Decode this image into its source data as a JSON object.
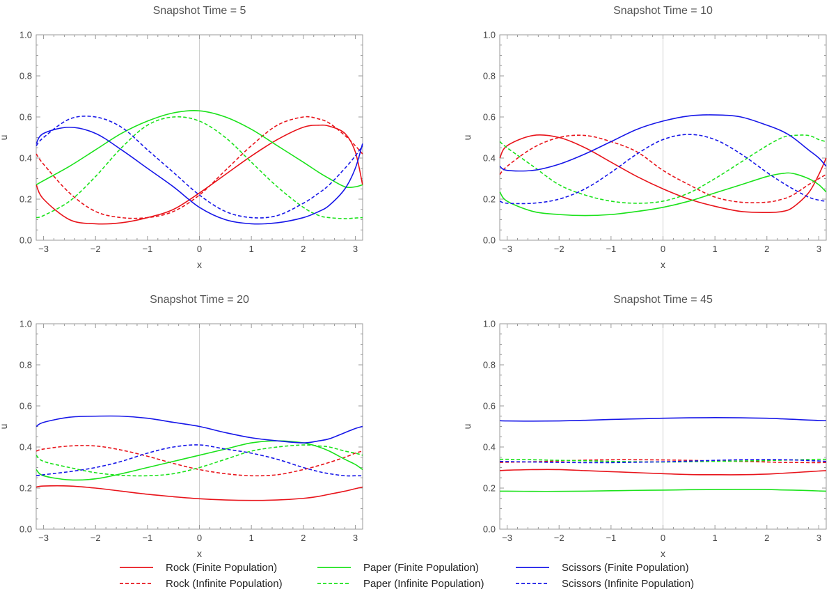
{
  "chart_data": [
    {
      "type": "line",
      "title": "Snapshot Time = 5",
      "xlabel": "x",
      "ylabel": "u",
      "xlim": [
        -3.14159,
        3.14159
      ],
      "ylim": [
        0,
        1
      ],
      "xticks": [
        -3,
        -2,
        -1,
        0,
        1,
        2,
        3
      ],
      "yticks": [
        0.0,
        0.2,
        0.4,
        0.6,
        0.8,
        1.0
      ],
      "x": [
        -3.14,
        -3.0,
        -2.5,
        -2.0,
        -1.5,
        -1.0,
        -0.5,
        0.0,
        0.5,
        1.0,
        1.5,
        2.0,
        2.3,
        2.5,
        2.8,
        3.0,
        3.14
      ],
      "series": [
        {
          "name": "Rock (Finite Population)",
          "color": "#e8141b",
          "dash": "solid",
          "values": [
            0.27,
            0.2,
            0.1,
            0.08,
            0.085,
            0.11,
            0.15,
            0.23,
            0.32,
            0.41,
            0.49,
            0.55,
            0.56,
            0.555,
            0.52,
            0.43,
            0.27
          ]
        },
        {
          "name": "Rock (Infinite Population)",
          "color": "#e8141b",
          "dash": "dashed",
          "values": [
            0.42,
            0.37,
            0.23,
            0.14,
            0.11,
            0.11,
            0.14,
            0.22,
            0.34,
            0.46,
            0.56,
            0.6,
            0.59,
            0.57,
            0.51,
            0.46,
            0.42
          ]
        },
        {
          "name": "Paper (Finite Population)",
          "color": "#1be21b",
          "dash": "solid",
          "values": [
            0.27,
            0.29,
            0.36,
            0.44,
            0.52,
            0.58,
            0.62,
            0.63,
            0.6,
            0.54,
            0.46,
            0.38,
            0.33,
            0.3,
            0.26,
            0.26,
            0.27
          ]
        },
        {
          "name": "Paper (Infinite Population)",
          "color": "#1be21b",
          "dash": "dashed",
          "values": [
            0.11,
            0.12,
            0.19,
            0.31,
            0.45,
            0.56,
            0.6,
            0.58,
            0.5,
            0.38,
            0.26,
            0.16,
            0.12,
            0.11,
            0.105,
            0.108,
            0.11
          ]
        },
        {
          "name": "Scissors (Finite Population)",
          "color": "#1717e8",
          "dash": "solid",
          "values": [
            0.47,
            0.52,
            0.55,
            0.52,
            0.44,
            0.35,
            0.26,
            0.16,
            0.1,
            0.08,
            0.085,
            0.11,
            0.14,
            0.17,
            0.25,
            0.35,
            0.47
          ]
        },
        {
          "name": "Scissors (Infinite Population)",
          "color": "#1717e8",
          "dash": "dashed",
          "values": [
            0.46,
            0.5,
            0.59,
            0.6,
            0.55,
            0.44,
            0.33,
            0.22,
            0.14,
            0.11,
            0.12,
            0.18,
            0.23,
            0.27,
            0.35,
            0.41,
            0.46
          ]
        }
      ]
    },
    {
      "type": "line",
      "title": "Snapshot Time = 10",
      "xlabel": "x",
      "ylabel": "u",
      "xlim": [
        -3.14159,
        3.14159
      ],
      "ylim": [
        0,
        1
      ],
      "xticks": [
        -3,
        -2,
        -1,
        0,
        1,
        2,
        3
      ],
      "yticks": [
        0.0,
        0.2,
        0.4,
        0.6,
        0.8,
        1.0
      ],
      "x": [
        -3.14,
        -3.0,
        -2.5,
        -2.0,
        -1.5,
        -1.0,
        -0.5,
        0.0,
        0.5,
        1.0,
        1.5,
        2.0,
        2.3,
        2.5,
        2.8,
        3.0,
        3.14
      ],
      "series": [
        {
          "name": "Rock (Finite Population)",
          "color": "#e8141b",
          "dash": "solid",
          "values": [
            0.4,
            0.46,
            0.51,
            0.5,
            0.45,
            0.38,
            0.31,
            0.25,
            0.2,
            0.165,
            0.14,
            0.135,
            0.14,
            0.16,
            0.23,
            0.32,
            0.4
          ]
        },
        {
          "name": "Rock (Infinite Population)",
          "color": "#e8141b",
          "dash": "dashed",
          "values": [
            0.32,
            0.36,
            0.45,
            0.5,
            0.51,
            0.48,
            0.43,
            0.34,
            0.27,
            0.21,
            0.185,
            0.185,
            0.2,
            0.22,
            0.27,
            0.3,
            0.32
          ]
        },
        {
          "name": "Paper (Finite Population)",
          "color": "#1be21b",
          "dash": "solid",
          "values": [
            0.235,
            0.19,
            0.14,
            0.125,
            0.12,
            0.125,
            0.14,
            0.16,
            0.19,
            0.23,
            0.27,
            0.31,
            0.325,
            0.325,
            0.3,
            0.27,
            0.235
          ]
        },
        {
          "name": "Paper (Infinite Population)",
          "color": "#1be21b",
          "dash": "dashed",
          "values": [
            0.48,
            0.45,
            0.36,
            0.27,
            0.22,
            0.19,
            0.18,
            0.19,
            0.23,
            0.3,
            0.38,
            0.46,
            0.5,
            0.51,
            0.51,
            0.49,
            0.48
          ]
        },
        {
          "name": "Scissors (Finite Population)",
          "color": "#1717e8",
          "dash": "solid",
          "values": [
            0.36,
            0.34,
            0.34,
            0.37,
            0.42,
            0.48,
            0.54,
            0.58,
            0.605,
            0.61,
            0.6,
            0.56,
            0.53,
            0.5,
            0.44,
            0.4,
            0.36
          ]
        },
        {
          "name": "Scissors (Infinite Population)",
          "color": "#1717e8",
          "dash": "dashed",
          "values": [
            0.19,
            0.18,
            0.18,
            0.2,
            0.25,
            0.33,
            0.42,
            0.49,
            0.515,
            0.49,
            0.42,
            0.33,
            0.28,
            0.25,
            0.21,
            0.195,
            0.19
          ]
        }
      ]
    },
    {
      "type": "line",
      "title": "Snapshot Time = 20",
      "xlabel": "x",
      "ylabel": "u",
      "xlim": [
        -3.14159,
        3.14159
      ],
      "ylim": [
        0,
        1
      ],
      "xticks": [
        -3,
        -2,
        -1,
        0,
        1,
        2,
        3
      ],
      "yticks": [
        0.0,
        0.2,
        0.4,
        0.6,
        0.8,
        1.0
      ],
      "x": [
        -3.14,
        -3.0,
        -2.5,
        -2.0,
        -1.5,
        -1.0,
        -0.5,
        0.0,
        0.5,
        1.0,
        1.5,
        2.0,
        2.3,
        2.5,
        2.8,
        3.0,
        3.14
      ],
      "series": [
        {
          "name": "Rock (Finite Population)",
          "color": "#e8141b",
          "dash": "solid",
          "values": [
            0.205,
            0.21,
            0.21,
            0.2,
            0.185,
            0.17,
            0.158,
            0.148,
            0.142,
            0.14,
            0.142,
            0.15,
            0.16,
            0.17,
            0.185,
            0.197,
            0.205
          ]
        },
        {
          "name": "Rock (Infinite Population)",
          "color": "#e8141b",
          "dash": "dashed",
          "values": [
            0.38,
            0.39,
            0.405,
            0.405,
            0.385,
            0.355,
            0.32,
            0.29,
            0.27,
            0.26,
            0.265,
            0.29,
            0.31,
            0.325,
            0.35,
            0.37,
            0.38
          ]
        },
        {
          "name": "Paper (Finite Population)",
          "color": "#1be21b",
          "dash": "solid",
          "values": [
            0.29,
            0.26,
            0.24,
            0.245,
            0.27,
            0.3,
            0.33,
            0.36,
            0.39,
            0.42,
            0.43,
            0.42,
            0.4,
            0.38,
            0.34,
            0.315,
            0.29
          ]
        },
        {
          "name": "Paper (Infinite Population)",
          "color": "#1be21b",
          "dash": "dashed",
          "values": [
            0.36,
            0.33,
            0.3,
            0.275,
            0.262,
            0.26,
            0.27,
            0.3,
            0.34,
            0.38,
            0.4,
            0.41,
            0.405,
            0.4,
            0.38,
            0.37,
            0.36
          ]
        },
        {
          "name": "Scissors (Finite Population)",
          "color": "#1717e8",
          "dash": "solid",
          "values": [
            0.5,
            0.52,
            0.545,
            0.55,
            0.55,
            0.54,
            0.52,
            0.5,
            0.47,
            0.445,
            0.43,
            0.42,
            0.43,
            0.44,
            0.47,
            0.49,
            0.5
          ]
        },
        {
          "name": "Scissors (Infinite Population)",
          "color": "#1717e8",
          "dash": "dashed",
          "values": [
            0.26,
            0.265,
            0.28,
            0.3,
            0.33,
            0.37,
            0.4,
            0.41,
            0.39,
            0.37,
            0.34,
            0.3,
            0.28,
            0.27,
            0.26,
            0.26,
            0.26
          ]
        }
      ]
    },
    {
      "type": "line",
      "title": "Snapshot Time = 45",
      "xlabel": "x",
      "ylabel": "u",
      "xlim": [
        -3.14159,
        3.14159
      ],
      "ylim": [
        0,
        1
      ],
      "xticks": [
        -3,
        -2,
        -1,
        0,
        1,
        2,
        3
      ],
      "yticks": [
        0.0,
        0.2,
        0.4,
        0.6,
        0.8,
        1.0
      ],
      "x": [
        -3.14,
        -3.0,
        -2.5,
        -2.0,
        -1.5,
        -1.0,
        -0.5,
        0.0,
        0.5,
        1.0,
        1.5,
        2.0,
        2.3,
        2.5,
        2.8,
        3.0,
        3.14
      ],
      "series": [
        {
          "name": "Rock (Finite Population)",
          "color": "#e8141b",
          "dash": "solid",
          "values": [
            0.285,
            0.287,
            0.29,
            0.29,
            0.285,
            0.28,
            0.275,
            0.27,
            0.266,
            0.265,
            0.265,
            0.268,
            0.272,
            0.275,
            0.28,
            0.283,
            0.285
          ]
        },
        {
          "name": "Rock (Infinite Population)",
          "color": "#e8141b",
          "dash": "dashed",
          "values": [
            0.325,
            0.326,
            0.328,
            0.332,
            0.336,
            0.338,
            0.338,
            0.337,
            0.335,
            0.332,
            0.33,
            0.327,
            0.325,
            0.325,
            0.324,
            0.324,
            0.325
          ]
        },
        {
          "name": "Paper (Finite Population)",
          "color": "#1be21b",
          "dash": "solid",
          "values": [
            0.185,
            0.185,
            0.184,
            0.184,
            0.185,
            0.187,
            0.189,
            0.19,
            0.192,
            0.193,
            0.194,
            0.193,
            0.191,
            0.19,
            0.188,
            0.186,
            0.185
          ]
        },
        {
          "name": "Paper (Infinite Population)",
          "color": "#1be21b",
          "dash": "dashed",
          "values": [
            0.34,
            0.34,
            0.338,
            0.335,
            0.333,
            0.33,
            0.328,
            0.327,
            0.328,
            0.33,
            0.332,
            0.334,
            0.336,
            0.337,
            0.339,
            0.34,
            0.34
          ]
        },
        {
          "name": "Scissors (Finite Population)",
          "color": "#1717e8",
          "dash": "solid",
          "values": [
            0.528,
            0.527,
            0.526,
            0.527,
            0.53,
            0.534,
            0.537,
            0.54,
            0.542,
            0.543,
            0.542,
            0.54,
            0.537,
            0.535,
            0.531,
            0.529,
            0.528
          ]
        },
        {
          "name": "Scissors (Infinite Population)",
          "color": "#1717e8",
          "dash": "dashed",
          "values": [
            0.33,
            0.329,
            0.327,
            0.325,
            0.324,
            0.324,
            0.326,
            0.328,
            0.331,
            0.335,
            0.338,
            0.339,
            0.338,
            0.337,
            0.334,
            0.332,
            0.33
          ]
        }
      ]
    }
  ],
  "legend": {
    "placement": "bottom",
    "items": [
      {
        "label": "Rock (Finite Population)",
        "color": "#e8141b",
        "dash": "solid"
      },
      {
        "label": "Rock (Infinite Population)",
        "color": "#e8141b",
        "dash": "dashed"
      },
      {
        "label": "Paper (Finite Population)",
        "color": "#1be21b",
        "dash": "solid"
      },
      {
        "label": "Paper (Infinite Population)",
        "color": "#1be21b",
        "dash": "dashed"
      },
      {
        "label": "Scissors (Finite Population)",
        "color": "#1717e8",
        "dash": "solid"
      },
      {
        "label": "Scissors (Infinite Population)",
        "color": "#1717e8",
        "dash": "dashed"
      }
    ]
  }
}
